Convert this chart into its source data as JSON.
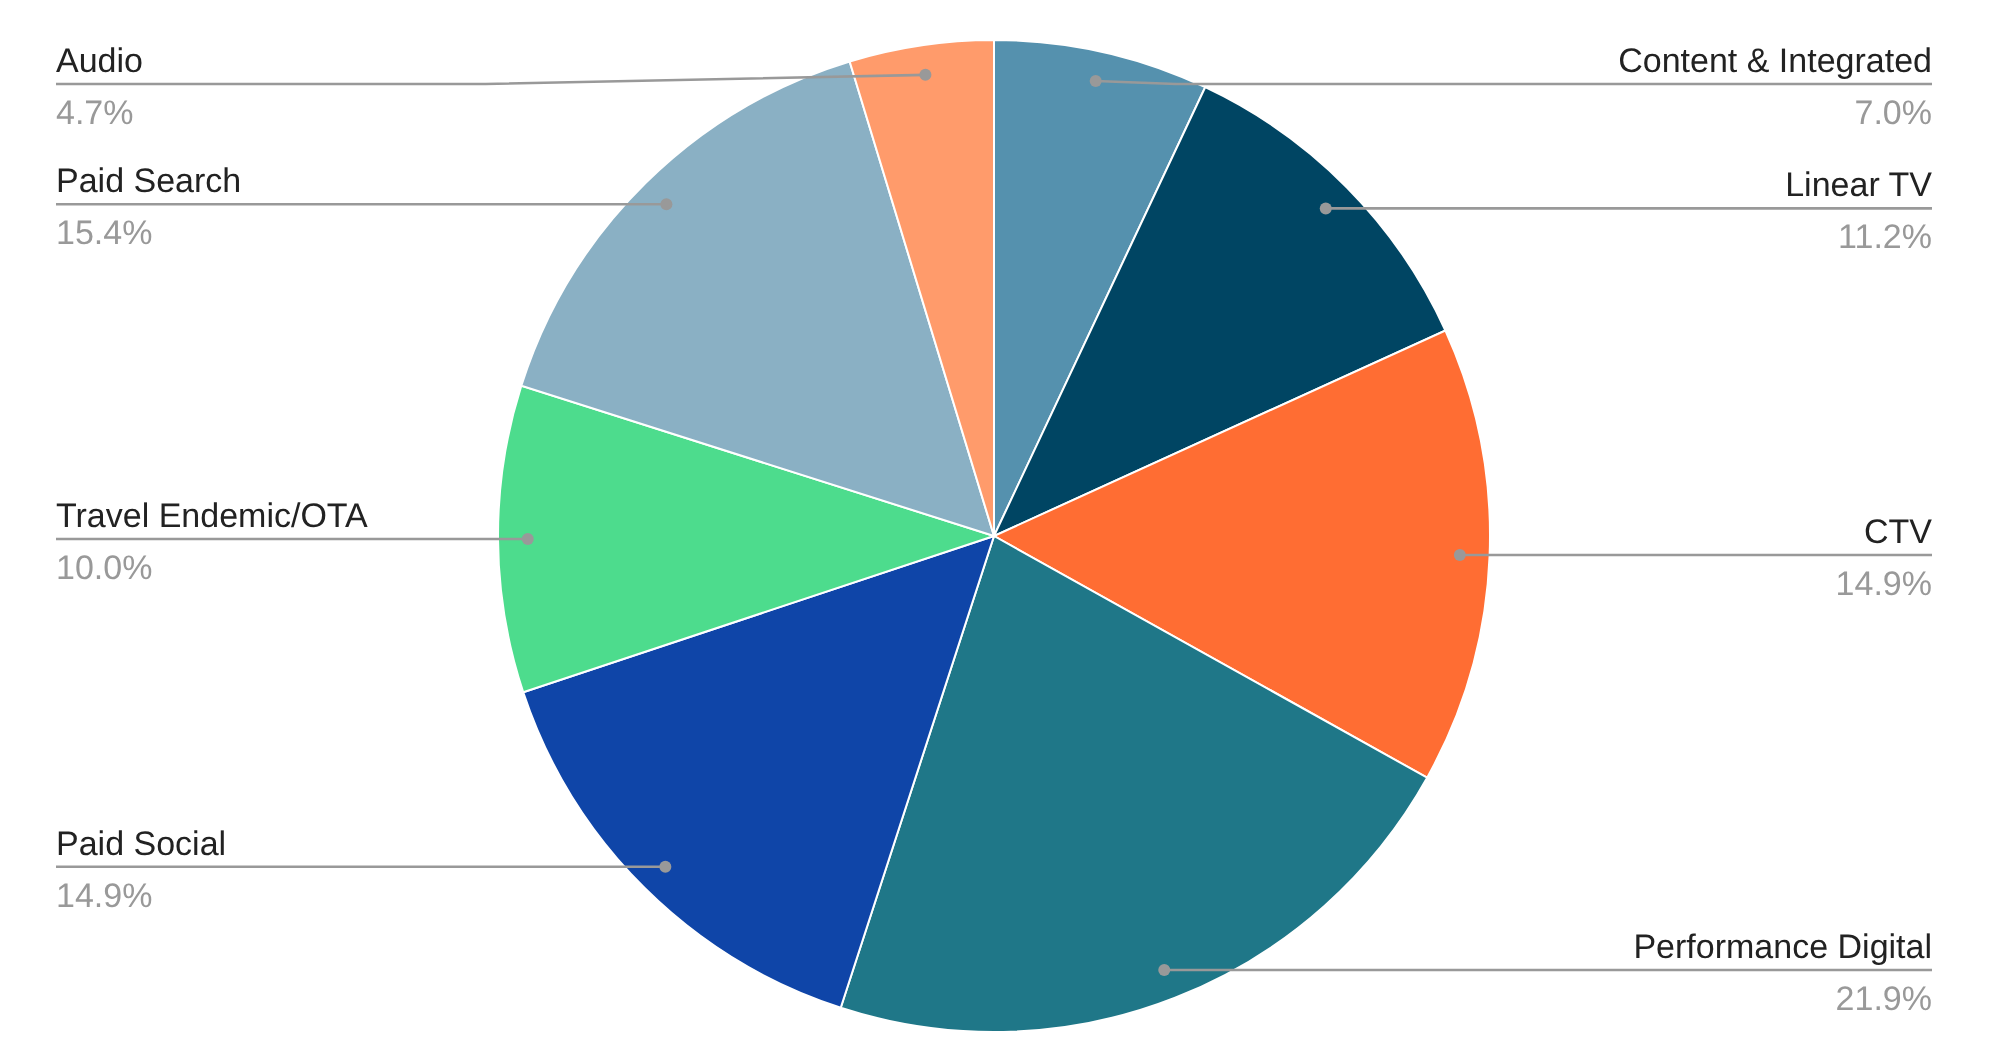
{
  "chart_data": {
    "type": "pie",
    "categories": [
      "Content & Integrated",
      "Linear TV",
      "CTV",
      "Performance Digital",
      "Paid Social",
      "Travel Endemic/OTA",
      "Paid Search",
      "Audio"
    ],
    "values": [
      7.0,
      11.2,
      14.9,
      21.9,
      14.9,
      10.0,
      15.4,
      4.7
    ],
    "value_labels": [
      "7.0%",
      "11.2%",
      "14.9%",
      "21.9%",
      "14.9%",
      "10.0%",
      "15.4%",
      "4.7%"
    ],
    "colors": [
      "#5591ae",
      "#004563",
      "#ff6d33",
      "#1f7788",
      "#0f45a8",
      "#4ddc8d",
      "#8ab0c4",
      "#ff9b6b"
    ]
  }
}
